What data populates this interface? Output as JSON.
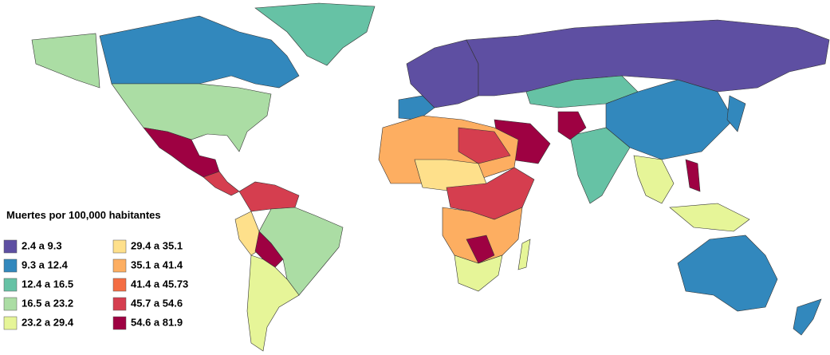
{
  "legend": {
    "title": "Muertes por 100,000 habitantes",
    "items": [
      {
        "label": "2.4 a 9.3",
        "color": "#5e4fa2"
      },
      {
        "label": "9.3 a 12.4",
        "color": "#3288bd"
      },
      {
        "label": "12.4 a 16.5",
        "color": "#66c2a5"
      },
      {
        "label": "16.5 a 23.2",
        "color": "#abdda4"
      },
      {
        "label": "23.2 a 29.4",
        "color": "#e6f598"
      },
      {
        "label": "29.4 a 35.1",
        "color": "#fee08b"
      },
      {
        "label": "35.1 a 41.4",
        "color": "#fdae61"
      },
      {
        "label": "41.4 a 45.73",
        "color": "#f46d43"
      },
      {
        "label": "45.7 a 54.6",
        "color": "#d53e4f"
      },
      {
        "label": "54.6 a 81.9",
        "color": "#9e0142"
      }
    ]
  }
}
